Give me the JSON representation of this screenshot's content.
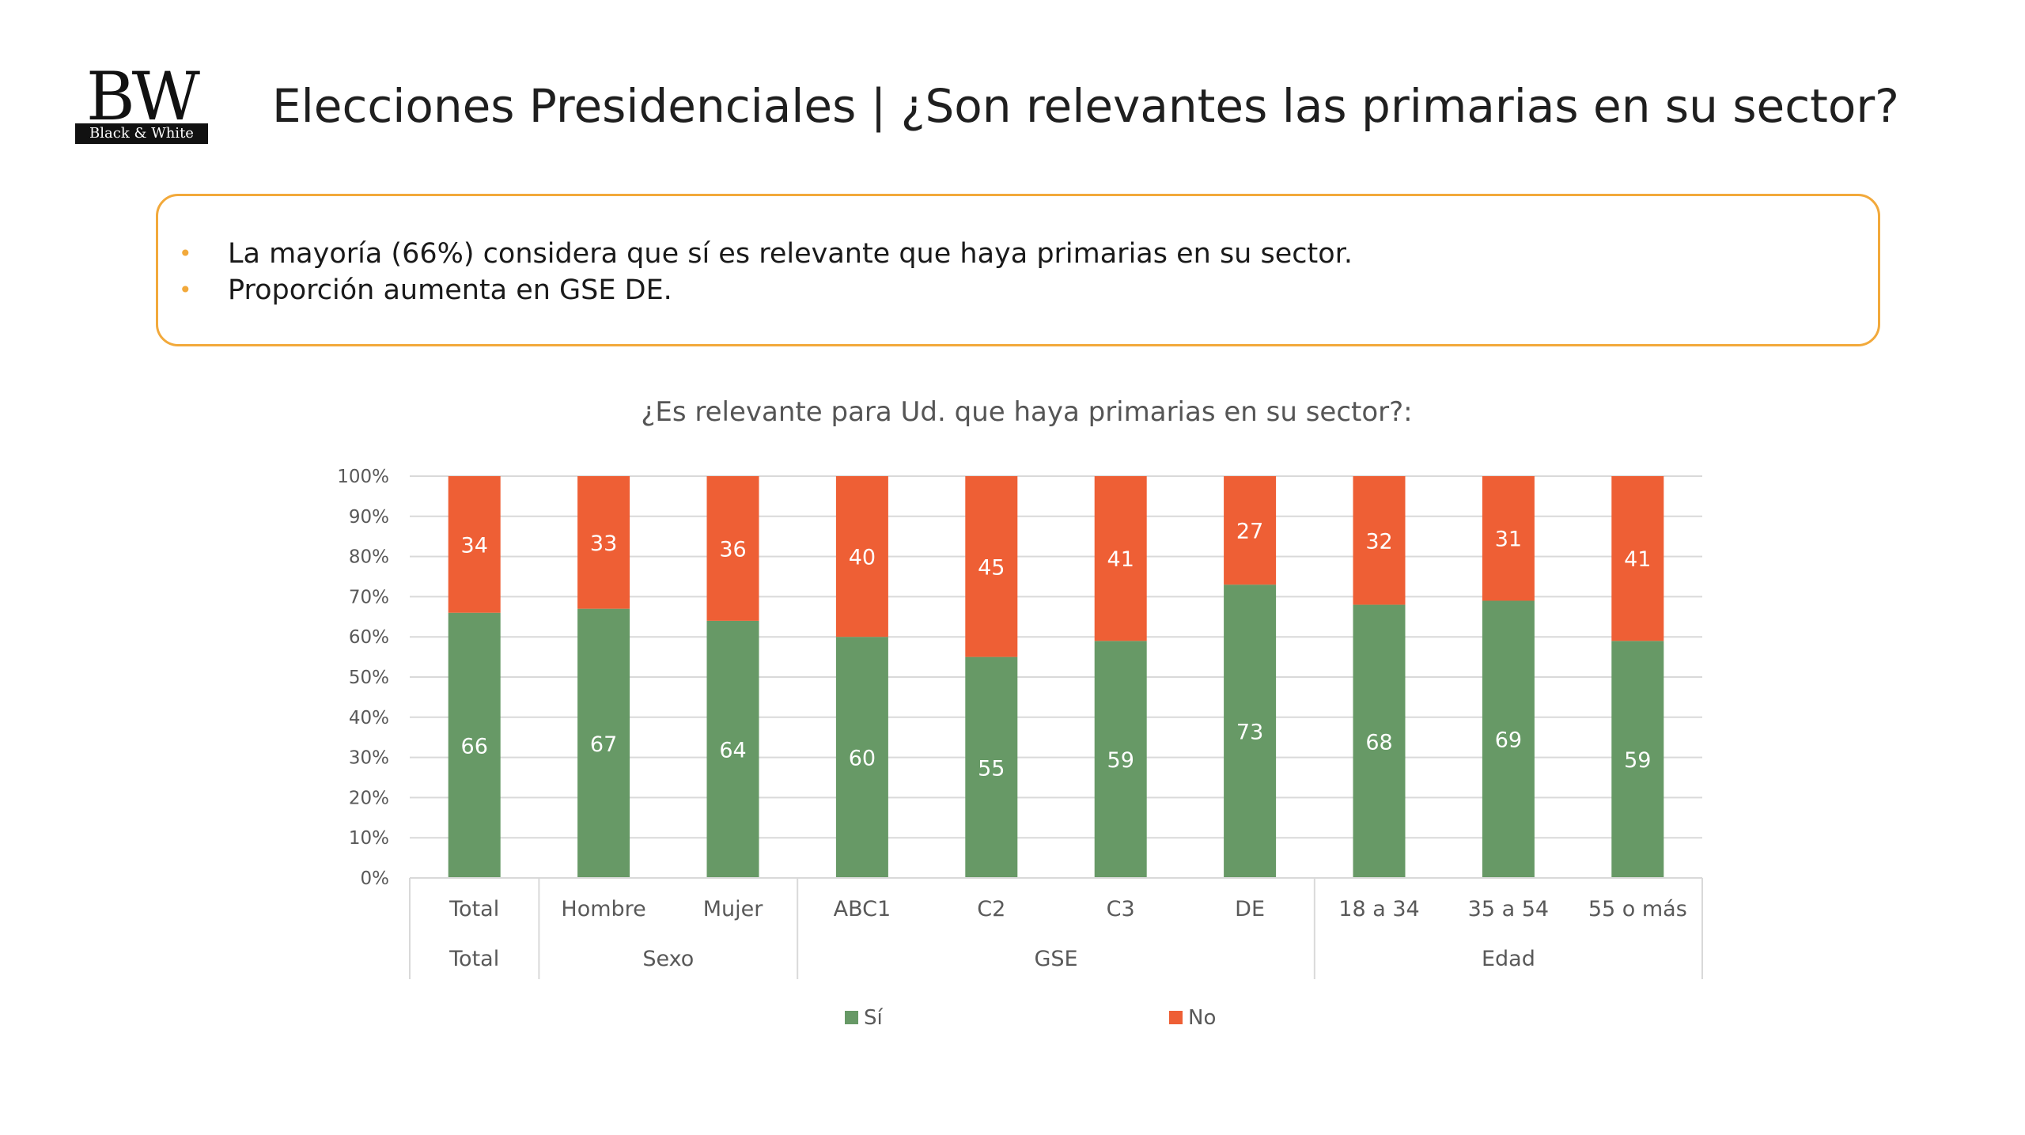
{
  "logo": {
    "mark": "BW",
    "text": "Black & White"
  },
  "header": {
    "title": "Elecciones Presidenciales | ¿Son relevantes las primarias en su sector?"
  },
  "summary": {
    "bullets": [
      "La mayoría (66%) considera que sí es relevante que haya primarias en su sector.",
      "Proporción aumenta en GSE DE."
    ]
  },
  "colors": {
    "accent": "#f2a93b",
    "si": "#679966",
    "no": "#ee5f35"
  },
  "chart_data": {
    "type": "bar",
    "stacked": true,
    "title": "¿Es relevante para Ud. que haya primarias en su sector?:",
    "categories": [
      "Total",
      "Hombre",
      "Mujer",
      "ABC1",
      "C2",
      "C3",
      "DE",
      "18 a 34",
      "35 a 54",
      "55 o más"
    ],
    "groups": [
      {
        "label": "Total",
        "count": 1
      },
      {
        "label": "Sexo",
        "count": 2
      },
      {
        "label": "GSE",
        "count": 4
      },
      {
        "label": "Edad",
        "count": 3
      }
    ],
    "series": [
      {
        "name": "Sí",
        "color": "#679966",
        "values": [
          66,
          67,
          64,
          60,
          55,
          59,
          73,
          68,
          69,
          59
        ]
      },
      {
        "name": "No",
        "color": "#ee5f35",
        "values": [
          34,
          33,
          36,
          40,
          45,
          41,
          27,
          32,
          31,
          41
        ]
      }
    ],
    "yticks": [
      "0%",
      "10%",
      "20%",
      "30%",
      "40%",
      "50%",
      "60%",
      "70%",
      "80%",
      "90%",
      "100%"
    ],
    "ylim": [
      0,
      100
    ],
    "grid": true,
    "legend": "bottom"
  }
}
